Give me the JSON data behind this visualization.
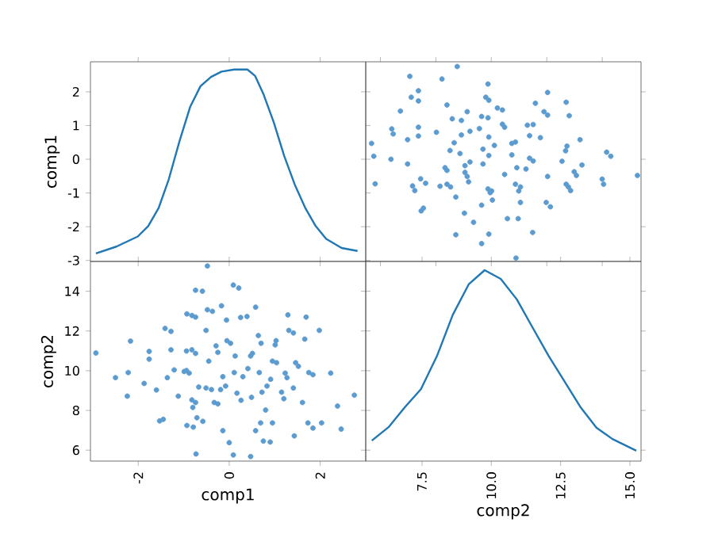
{
  "chart_data": [
    {
      "type": "line",
      "color": "#1f77b4",
      "xlim": [
        -3.05,
        3.0
      ],
      "ylim": [
        -3.03,
        2.89
      ],
      "yticks": [
        -3,
        -2,
        -1,
        0,
        1,
        2
      ],
      "ylabel": "comp1",
      "tick_labels": "y",
      "x": [
        -2.93,
        -2.48,
        -2.01,
        -1.78,
        -1.55,
        -1.33,
        -1.09,
        -0.86,
        -0.63,
        -0.4,
        -0.17,
        0.11,
        0.4,
        0.57,
        0.75,
        0.98,
        1.21,
        1.44,
        1.67,
        1.9,
        2.13,
        2.47,
        2.82
      ],
      "values": [
        -2.79,
        -2.59,
        -2.29,
        -1.98,
        -1.44,
        -0.6,
        0.55,
        1.55,
        2.17,
        2.44,
        2.6,
        2.66,
        2.66,
        2.47,
        1.94,
        1.09,
        0.09,
        -0.75,
        -1.44,
        -1.98,
        -2.36,
        -2.63,
        -2.72
      ]
    },
    {
      "type": "scatter",
      "color": "#5b9bd0",
      "marker": "circle",
      "xlim": [
        5.47,
        15.4
      ],
      "ylim": [
        -3.03,
        2.89
      ],
      "tick_labels": false,
      "x": [
        15.27,
        10.89,
        14.31,
        14.16,
        14.05,
        14.0,
        11.49,
        9.65,
        9.91,
        8.72,
        9.36,
        10.97,
        10.58,
        9.03,
        7.47,
        7.55,
        12.13,
        11.98,
        9.65,
        11.05,
        10.04,
        8.72,
        12.86,
        12.78,
        12.7,
        10.99,
        11.05,
        10.87,
        9.96,
        9.88,
        10.01,
        9.18,
        8.53,
        8.4,
        8.15,
        7.63,
        7.45,
        7.24,
        7.16,
        5.81,
        13.07,
        12.99,
        12.03,
        10.48,
        9.13,
        9.05,
        8.4,
        8.33,
        11.25,
        10.92,
        13.27,
        12.55,
        9.7,
        9.05,
        9.23,
        6.98,
        6.38,
        5.76,
        11.51,
        11.38,
        10.74,
        9.91,
        8.87,
        8.51,
        12.68,
        12.73,
        9.7,
        10.11,
        10.74,
        10.87,
        8.66,
        5.68,
        13.2,
        11.77,
        11.38,
        9.91,
        8.92,
        6.98,
        7.37,
        6.46,
        6.41,
        8.02,
        9.23,
        10.48,
        10.4,
        11.3,
        11.51,
        9.57,
        7.37,
        8.92,
        8.59,
        12.81,
        12.03,
        11.9,
        9.88,
        9.65,
        9.13,
        10.4,
        10.22,
        6.72,
        11.59,
        12.7,
        8.4,
        9.91,
        9.8,
        7.37,
        7.11,
        12.03,
        7.37,
        9.88,
        8.22,
        7.06,
        8.77
      ],
      "values": [
        -0.48,
        -2.93,
        0.09,
        0.21,
        -0.74,
        -0.59,
        -2.17,
        -2.5,
        -2.22,
        -2.24,
        -1.87,
        -1.76,
        -1.76,
        -1.6,
        -1.53,
        -1.45,
        -1.41,
        -1.28,
        -1.36,
        -1.28,
        -1.21,
        -1.12,
        -0.93,
        -0.82,
        -0.74,
        -0.94,
        -0.82,
        -0.74,
        -0.99,
        -0.88,
        -0.94,
        -0.67,
        -0.82,
        -0.74,
        -0.8,
        -0.71,
        -0.58,
        -0.93,
        -0.79,
        -0.73,
        -0.48,
        -0.37,
        -0.51,
        -0.45,
        -0.51,
        -0.39,
        -0.33,
        -0.25,
        -0.29,
        -0.25,
        -0.17,
        -0.06,
        -0.14,
        -0.19,
        -0.08,
        -0.14,
        0,
        0.09,
        -0.05,
        0.03,
        0.13,
        0.11,
        0.17,
        0.26,
        0.25,
        0.39,
        0.3,
        0.41,
        0.47,
        0.51,
        0.49,
        0.47,
        0.58,
        0.64,
        0.7,
        0.66,
        0.72,
        0.58,
        0.69,
        0.75,
        0.9,
        0.8,
        0.83,
        0.95,
        1.04,
        1.01,
        1.03,
        0.91,
        0.95,
        1.15,
        1.2,
        1.29,
        1.31,
        1.41,
        1.23,
        1.27,
        1.41,
        1.46,
        1.52,
        1.43,
        1.66,
        1.69,
        1.61,
        1.75,
        1.84,
        1.73,
        1.84,
        1.98,
        2.03,
        2.23,
        2.38,
        2.46,
        2.75
      ]
    },
    {
      "type": "scatter",
      "color": "#5b9bd0",
      "marker": "circle",
      "xlim": [
        -3.05,
        3.0
      ],
      "ylim": [
        5.45,
        15.5
      ],
      "xticks": [
        -2,
        0,
        2
      ],
      "yticks": [
        6,
        8,
        10,
        12,
        14
      ],
      "xlabel": "comp1",
      "ylabel": "comp2",
      "x": [
        -0.48,
        -2.93,
        0.09,
        0.21,
        -0.74,
        -0.59,
        -2.17,
        -2.5,
        -2.22,
        -2.24,
        -1.87,
        -1.76,
        -1.76,
        -1.6,
        -1.53,
        -1.45,
        -1.41,
        -1.28,
        -1.36,
        -1.28,
        -1.21,
        -1.12,
        -0.93,
        -0.82,
        -0.74,
        -0.94,
        -0.82,
        -0.74,
        -0.99,
        -0.88,
        -0.94,
        -0.67,
        -0.82,
        -0.74,
        -0.8,
        -0.71,
        -0.58,
        -0.93,
        -0.79,
        -0.73,
        -0.48,
        -0.37,
        -0.51,
        -0.45,
        -0.51,
        -0.39,
        -0.33,
        -0.25,
        -0.29,
        -0.25,
        -0.17,
        -0.06,
        -0.14,
        -0.19,
        -0.08,
        -0.14,
        0,
        0.09,
        -0.05,
        0.03,
        0.13,
        0.11,
        0.17,
        0.26,
        0.25,
        0.39,
        0.3,
        0.41,
        0.47,
        0.51,
        0.49,
        0.47,
        0.58,
        0.64,
        0.7,
        0.66,
        0.72,
        0.58,
        0.69,
        0.75,
        0.9,
        0.8,
        0.83,
        0.95,
        1.04,
        1.01,
        1.03,
        0.91,
        0.95,
        1.15,
        1.2,
        1.29,
        1.31,
        1.41,
        1.23,
        1.27,
        1.41,
        1.46,
        1.52,
        1.43,
        1.66,
        1.69,
        1.61,
        1.75,
        1.84,
        1.73,
        1.84,
        1.98,
        2.03,
        2.23,
        2.38,
        2.46,
        2.75
      ],
      "values": [
        15.27,
        10.89,
        14.31,
        14.16,
        14.05,
        14.0,
        11.49,
        9.65,
        9.91,
        8.72,
        9.36,
        10.97,
        10.58,
        9.03,
        7.47,
        7.55,
        12.13,
        11.98,
        9.65,
        11.05,
        10.04,
        8.72,
        12.86,
        12.78,
        12.7,
        10.99,
        11.05,
        10.87,
        9.96,
        9.88,
        10.01,
        9.18,
        8.53,
        8.4,
        8.15,
        7.63,
        7.45,
        7.24,
        7.16,
        5.81,
        13.07,
        12.99,
        12.03,
        10.48,
        9.13,
        9.05,
        8.4,
        8.33,
        11.25,
        10.92,
        13.27,
        12.55,
        9.7,
        9.05,
        9.23,
        6.98,
        6.38,
        5.76,
        11.51,
        11.38,
        10.74,
        9.91,
        8.87,
        8.51,
        12.68,
        12.73,
        9.7,
        10.11,
        10.74,
        10.87,
        8.66,
        5.68,
        13.2,
        11.77,
        11.38,
        9.91,
        8.92,
        6.98,
        7.37,
        6.46,
        6.41,
        8.02,
        9.23,
        10.48,
        10.4,
        11.3,
        11.51,
        9.57,
        7.37,
        8.92,
        8.59,
        12.81,
        12.03,
        11.9,
        9.88,
        9.65,
        9.13,
        10.4,
        10.22,
        6.72,
        11.59,
        12.7,
        8.4,
        9.91,
        9.8,
        7.37,
        7.11,
        12.03,
        7.37,
        9.88,
        8.22,
        7.06,
        8.77
      ]
    },
    {
      "type": "line",
      "color": "#1f77b4",
      "xlim": [
        5.47,
        15.4
      ],
      "ylim": [
        5.45,
        15.5
      ],
      "xticks": [
        7.5,
        {
          "value": 10,
          "label": "10.0"
        },
        12.5,
        {
          "value": 15,
          "label": "15.0"
        }
      ],
      "xlabel": "comp2",
      "tick_labels": "x",
      "x": [
        5.69,
        6.31,
        6.88,
        7.46,
        8.04,
        8.61,
        9.19,
        9.76,
        10.34,
        10.92,
        11.49,
        12.07,
        12.64,
        13.22,
        13.79,
        14.37,
        15.23
      ],
      "values": [
        6.48,
        7.18,
        8.16,
        9.07,
        10.74,
        12.81,
        14.36,
        15.06,
        14.62,
        13.59,
        12.17,
        10.74,
        9.46,
        8.16,
        7.13,
        6.56,
        5.97
      ]
    }
  ]
}
